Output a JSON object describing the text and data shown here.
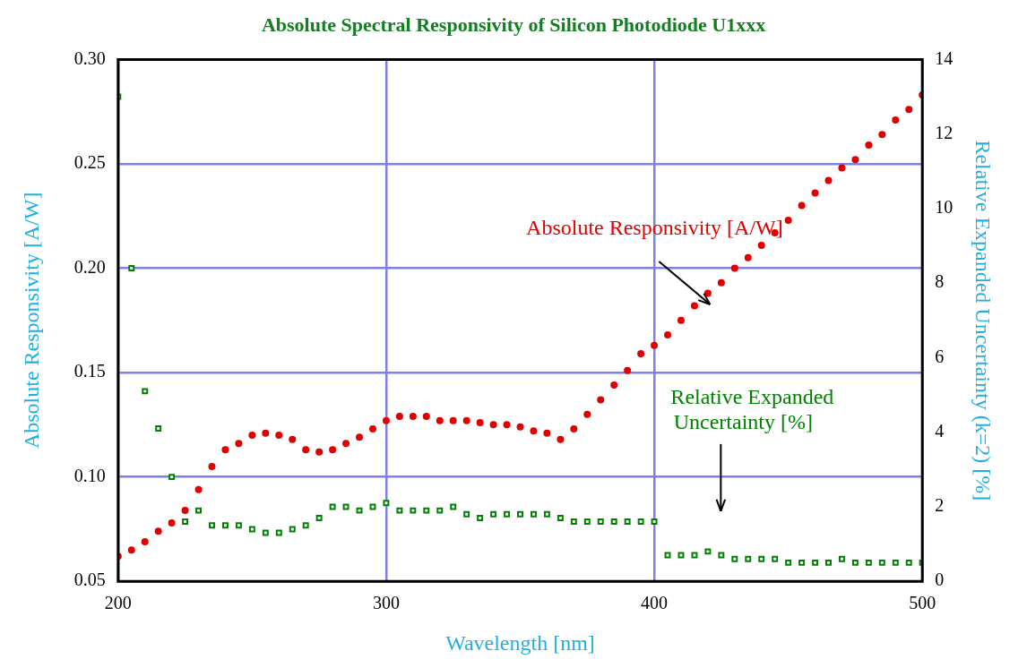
{
  "chart_data": {
    "type": "scatter",
    "title": "Absolute Spectral Responsivity of Silicon Photodiode U1xxx",
    "xlabel": "Wavelength [nm]",
    "ylabel": "Absolute Responsivity [A/W]",
    "y2label": "Relative Expanded Uncertainty (k=2) [%]",
    "x": [
      200,
      205,
      210,
      215,
      220,
      225,
      230,
      235,
      240,
      245,
      250,
      255,
      260,
      265,
      270,
      275,
      280,
      285,
      290,
      295,
      300,
      305,
      310,
      315,
      320,
      325,
      330,
      335,
      340,
      345,
      350,
      355,
      360,
      365,
      370,
      375,
      380,
      385,
      390,
      395,
      400,
      405,
      410,
      415,
      420,
      425,
      430,
      435,
      440,
      445,
      450,
      455,
      460,
      465,
      470,
      475,
      480,
      485,
      490,
      495,
      500
    ],
    "series": [
      {
        "color": "#e00000",
        "marker": "circle",
        "values": [
          0.062,
          0.065,
          0.069,
          0.074,
          0.078,
          0.084,
          0.094,
          0.105,
          0.113,
          0.116,
          0.12,
          0.121,
          0.12,
          0.118,
          0.113,
          0.112,
          0.113,
          0.116,
          0.119,
          0.123,
          0.127,
          0.129,
          0.129,
          0.129,
          0.127,
          0.127,
          0.127,
          0.126,
          0.125,
          0.125,
          0.124,
          0.122,
          0.121,
          0.118,
          0.123,
          0.13,
          0.137,
          0.144,
          0.151,
          0.159,
          0.163,
          0.168,
          0.175,
          0.182,
          0.188,
          0.193,
          0.2,
          0.205,
          0.211,
          0.217,
          0.223,
          0.23,
          0.236,
          0.242,
          0.248,
          0.252,
          0.259,
          0.264,
          0.271,
          0.276,
          0.283
        ]
      },
      {
        "color": "#008000",
        "marker": "square",
        "axis": "y2",
        "values": [
          13.0,
          8.4,
          5.1,
          4.1,
          2.8,
          1.6,
          1.9,
          1.5,
          1.5,
          1.5,
          1.4,
          1.3,
          1.3,
          1.4,
          1.5,
          1.7,
          2.0,
          2.0,
          1.9,
          2.0,
          2.1,
          1.9,
          1.9,
          1.9,
          1.9,
          2.0,
          1.8,
          1.7,
          1.8,
          1.8,
          1.8,
          1.8,
          1.8,
          1.7,
          1.6,
          1.6,
          1.6,
          1.6,
          1.6,
          1.6,
          1.6,
          0.7,
          0.7,
          0.7,
          0.8,
          0.7,
          0.6,
          0.6,
          0.6,
          0.6,
          0.5,
          0.5,
          0.5,
          0.5,
          0.6,
          0.5,
          0.5,
          0.5,
          0.5,
          0.5,
          0.5
        ]
      }
    ],
    "xlim": [
      200,
      500
    ],
    "xticks": [
      200,
      300,
      400,
      500
    ],
    "ylim": [
      0.05,
      0.3
    ],
    "yticks": [
      0.05,
      {
        "value": 0.1,
        "label": "0.10"
      },
      0.15,
      {
        "value": 0.2,
        "label": "0.20"
      },
      0.25,
      {
        "value": 0.3,
        "label": "0.30"
      }
    ],
    "y2lim": [
      0,
      14
    ],
    "y2ticks": [
      0,
      2,
      4,
      6,
      8,
      10,
      12,
      14
    ],
    "grid": true,
    "legend": false,
    "annotations": [
      "Absolute Responsivity [A/W]",
      "Relative Expanded Uncertainty [%]"
    ]
  }
}
